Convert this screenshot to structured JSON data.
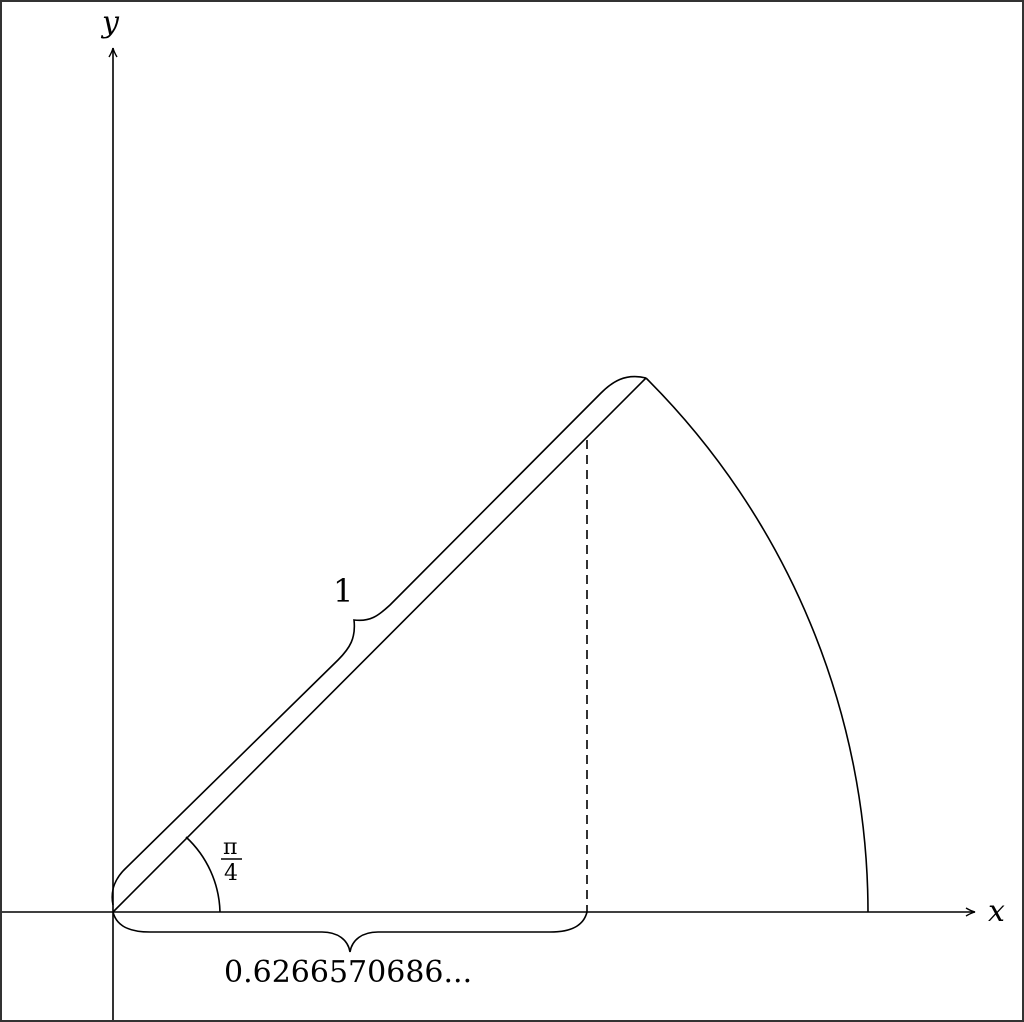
{
  "axes": {
    "x_label": "x",
    "y_label": "y"
  },
  "labels": {
    "radius": "1",
    "angle_numerator": "π",
    "angle_denominator": "4",
    "horizontal_length": "0.6266570686..."
  },
  "colors": {
    "stroke": "#000000",
    "frame": "#333333",
    "background": "#ffffff"
  }
}
